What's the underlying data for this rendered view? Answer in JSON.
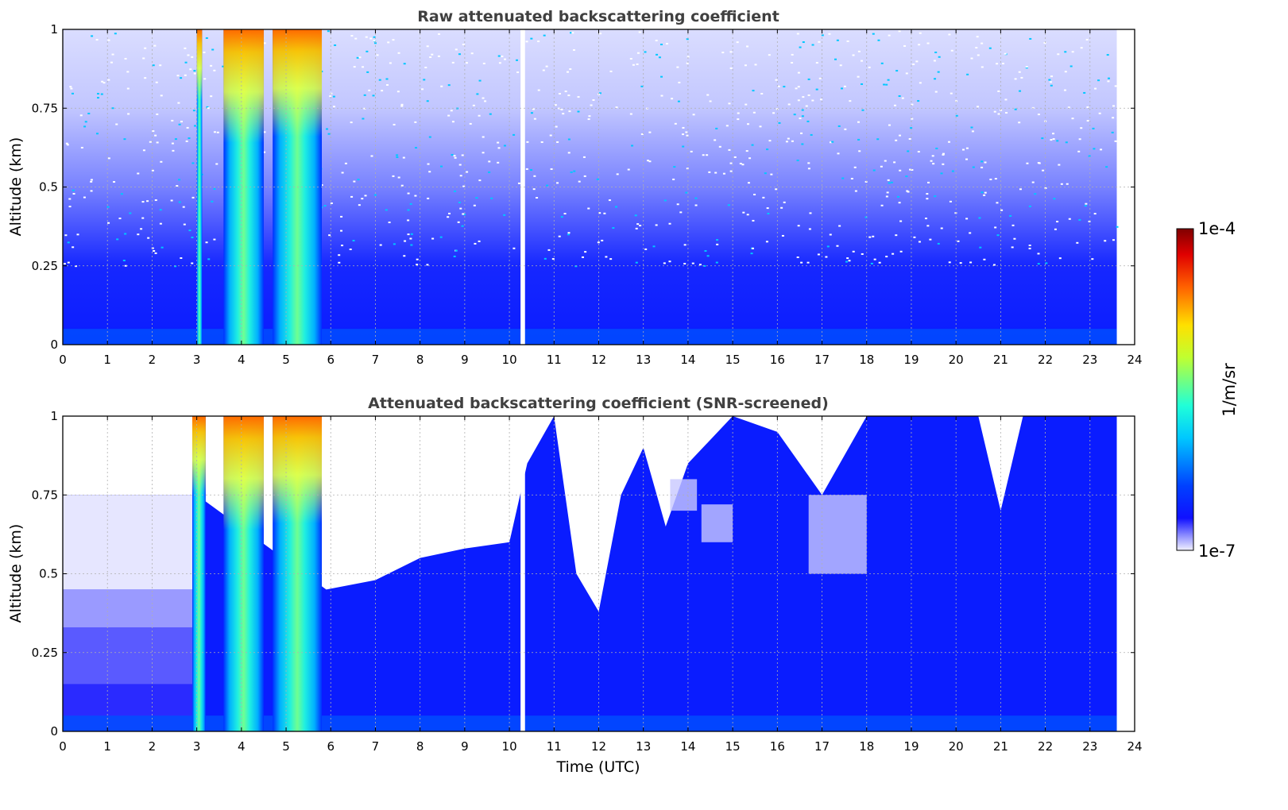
{
  "chart_data": [
    {
      "type": "heatmap",
      "title": "Raw attenuated backscattering coefficient",
      "xlabel": "",
      "ylabel": "Altitude (km)",
      "xlim": [
        0,
        24
      ],
      "ylim": [
        0,
        1
      ],
      "x_ticks": [
        "0",
        "1",
        "2",
        "3",
        "4",
        "5",
        "6",
        "7",
        "8",
        "9",
        "10",
        "11",
        "12",
        "13",
        "14",
        "15",
        "16",
        "17",
        "18",
        "19",
        "20",
        "21",
        "22",
        "23",
        "24"
      ],
      "y_ticks": [
        "0",
        "0.25",
        "0.5",
        "0.75",
        "1"
      ],
      "grid": true,
      "data_end_time": 23.6,
      "cloud_bands": [
        {
          "start": 3.0,
          "end": 3.12,
          "intensity": 0.45
        },
        {
          "start": 3.6,
          "end": 4.5,
          "intensity": 0.72
        },
        {
          "start": 4.7,
          "end": 5.8,
          "intensity": 0.68
        }
      ],
      "gaps": [
        [
          10.25,
          10.35
        ]
      ]
    },
    {
      "type": "heatmap",
      "title": "Attenuated backscattering coefficient (SNR-screened)",
      "xlabel": "Time (UTC)",
      "ylabel": "Altitude (km)",
      "xlim": [
        0,
        24
      ],
      "ylim": [
        0,
        1
      ],
      "x_ticks": [
        "0",
        "1",
        "2",
        "3",
        "4",
        "5",
        "6",
        "7",
        "8",
        "9",
        "10",
        "11",
        "12",
        "13",
        "14",
        "15",
        "16",
        "17",
        "18",
        "19",
        "20",
        "21",
        "22",
        "23",
        "24"
      ],
      "y_ticks": [
        "0",
        "0.25",
        "0.5",
        "0.75",
        "1"
      ],
      "grid": true,
      "data_end_time": 23.6,
      "cloud_bands": [
        {
          "start": 2.9,
          "end": 3.2,
          "intensity": 0.5
        },
        {
          "start": 3.6,
          "end": 4.5,
          "intensity": 0.72
        },
        {
          "start": 4.7,
          "end": 5.8,
          "intensity": 0.68
        }
      ],
      "gaps": [
        [
          10.25,
          10.35
        ]
      ],
      "screened_top_km": [
        {
          "t": 0,
          "h": 0.75
        },
        {
          "t": 3,
          "h": 0.75
        },
        {
          "t": 5.9,
          "h": 0.45
        },
        {
          "t": 7,
          "h": 0.48
        },
        {
          "t": 8,
          "h": 0.55
        },
        {
          "t": 9,
          "h": 0.58
        },
        {
          "t": 10,
          "h": 0.6
        },
        {
          "t": 10.4,
          "h": 0.85
        },
        {
          "t": 11,
          "h": 1.0
        },
        {
          "t": 11.5,
          "h": 0.5
        },
        {
          "t": 12,
          "h": 0.38
        },
        {
          "t": 12.5,
          "h": 0.75
        },
        {
          "t": 13,
          "h": 0.9
        },
        {
          "t": 13.5,
          "h": 0.65
        },
        {
          "t": 14,
          "h": 0.85
        },
        {
          "t": 15,
          "h": 1.0
        },
        {
          "t": 16,
          "h": 0.95
        },
        {
          "t": 17,
          "h": 0.75
        },
        {
          "t": 18,
          "h": 1.0
        },
        {
          "t": 20.5,
          "h": 1.0
        },
        {
          "t": 21,
          "h": 0.7
        },
        {
          "t": 21.5,
          "h": 1.0
        },
        {
          "t": 23.6,
          "h": 1.0
        }
      ]
    }
  ],
  "colorbar": {
    "label": "1/m/sr",
    "min_label": "1e-7",
    "max_label": "1e-4",
    "colormap": "jet",
    "scale": "log"
  }
}
